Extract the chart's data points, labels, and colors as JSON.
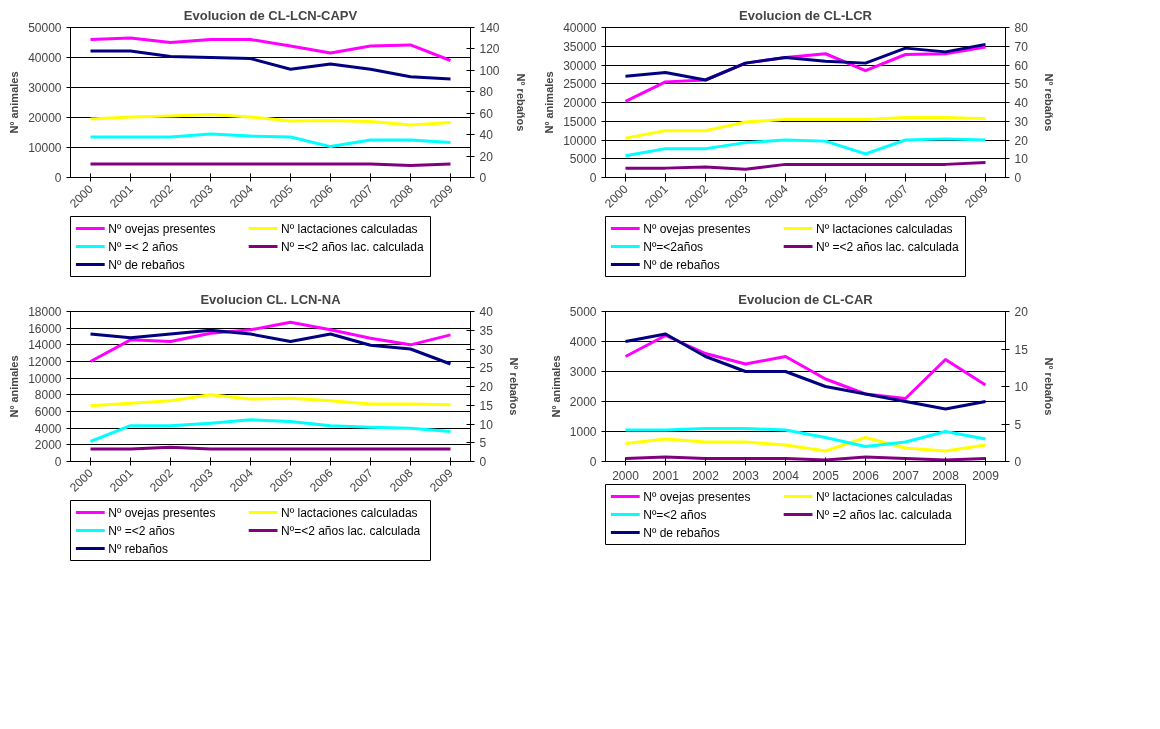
{
  "chart_data": [
    {
      "type": "line",
      "title": "Evolucion de CL-LCN-CAPV",
      "ylabel": "Nº animales",
      "y2label": "Nº rebaños",
      "categories": [
        "2000",
        "2001",
        "2002",
        "2003",
        "2004",
        "2005",
        "2006",
        "2007",
        "2008",
        "2009"
      ],
      "series": [
        {
          "name": "Nº ovejas presentes",
          "color": "#ff00ff",
          "values": [
            46000,
            46500,
            45000,
            46000,
            46000,
            43800,
            41500,
            43800,
            44200,
            39000
          ]
        },
        {
          "name": "Nº lactaciones calculadas",
          "color": "#ffff00",
          "values": [
            19500,
            20200,
            20500,
            21000,
            20200,
            18800,
            19000,
            18700,
            17500,
            18300
          ]
        },
        {
          "name": "Nº =< 2 años",
          "color": "#00ffff",
          "values": [
            13500,
            13500,
            13500,
            14500,
            13800,
            13500,
            10300,
            12500,
            12500,
            11700
          ]
        },
        {
          "name": "Nº =<2 años lac. calculada",
          "color": "#800080",
          "values": [
            4500,
            4500,
            4500,
            4500,
            4500,
            4500,
            4500,
            4500,
            4000,
            4500
          ]
        },
        {
          "name": "Nº de rebaños",
          "color": "#000080",
          "axis": "y2",
          "values": [
            118,
            118,
            113,
            112,
            111,
            101,
            106,
            101,
            94,
            92
          ]
        }
      ],
      "ylim": [
        0,
        50000
      ],
      "yticks": [
        0,
        10000,
        20000,
        30000,
        40000,
        50000
      ],
      "y2lim": [
        0,
        140
      ],
      "y2ticks": [
        0,
        20,
        40,
        60,
        80,
        100,
        120,
        140
      ],
      "grid": "y",
      "legend": "bottom"
    },
    {
      "type": "line",
      "title": "Evolucion de CL-LCR",
      "ylabel": "Nº animales",
      "y2label": "Nº rebaños",
      "categories": [
        "2000",
        "2001",
        "2002",
        "2003",
        "2004",
        "2005",
        "2006",
        "2007",
        "2008",
        "2009"
      ],
      "series": [
        {
          "name": "Nº ovejas presentes",
          "color": "#ff00ff",
          "values": [
            20300,
            25500,
            26000,
            30500,
            32000,
            33000,
            28500,
            32800,
            33000,
            34800
          ]
        },
        {
          "name": "Nº lactaciones calculadas",
          "color": "#ffff00",
          "values": [
            10500,
            12500,
            12500,
            14800,
            15500,
            15500,
            15500,
            16000,
            16000,
            15700
          ]
        },
        {
          "name": "Nº=<2años",
          "color": "#00ffff",
          "values": [
            5800,
            7700,
            7700,
            9300,
            10000,
            9700,
            6300,
            10000,
            10300,
            10000
          ]
        },
        {
          "name": "Nº =<2 años  lac. calculada",
          "color": "#800080",
          "values": [
            2500,
            2500,
            2800,
            2200,
            3500,
            3500,
            3500,
            3500,
            3500,
            4000
          ]
        },
        {
          "name": "Nº de rebaños",
          "color": "#000080",
          "axis": "y2",
          "values": [
            54,
            56,
            52,
            61,
            64,
            62,
            61,
            69,
            67,
            71
          ]
        }
      ],
      "ylim": [
        0,
        40000
      ],
      "yticks": [
        0,
        5000,
        10000,
        15000,
        20000,
        25000,
        30000,
        35000,
        40000
      ],
      "y2lim": [
        0,
        80
      ],
      "y2ticks": [
        0,
        10,
        20,
        30,
        40,
        50,
        60,
        70,
        80
      ],
      "grid": "y",
      "legend": "bottom"
    },
    {
      "type": "line",
      "title": "Evolucion CL. LCN-NA",
      "ylabel": "Nº animales",
      "y2label": "Nº rebaños",
      "categories": [
        "2000",
        "2001",
        "2002",
        "2003",
        "2004",
        "2005",
        "2006",
        "2007",
        "2008",
        "2009"
      ],
      "series": [
        {
          "name": "Nº ovejas presentes",
          "color": "#ff00ff",
          "values": [
            12000,
            14600,
            14400,
            15400,
            15800,
            16700,
            15800,
            14800,
            14000,
            15200
          ]
        },
        {
          "name": "Nº lactaciones calculadas",
          "color": "#ffff00",
          "values": [
            6700,
            7000,
            7300,
            8000,
            7500,
            7600,
            7300,
            6900,
            6900,
            6800
          ]
        },
        {
          "name": "Nº =<2 años",
          "color": "#00ffff",
          "values": [
            2400,
            4300,
            4300,
            4600,
            5000,
            4800,
            4300,
            4100,
            4000,
            3600
          ]
        },
        {
          "name": "Nº=<2 años  lac. calculada",
          "color": "#800080",
          "values": [
            1500,
            1500,
            1700,
            1500,
            1500,
            1500,
            1500,
            1500,
            1500,
            1500
          ]
        },
        {
          "name": "Nº rebaños",
          "color": "#000080",
          "axis": "y2",
          "values": [
            34,
            33,
            34,
            35,
            34,
            32,
            34,
            31,
            30,
            26
          ]
        }
      ],
      "ylim": [
        0,
        18000
      ],
      "yticks": [
        0,
        2000,
        4000,
        6000,
        8000,
        10000,
        12000,
        14000,
        16000,
        18000
      ],
      "y2lim": [
        0,
        40
      ],
      "y2ticks": [
        0,
        5,
        10,
        15,
        20,
        25,
        30,
        35,
        40
      ],
      "grid": "y",
      "legend": "bottom"
    },
    {
      "type": "line",
      "title": "Evolucion de CL-CAR",
      "ylabel": "Nº animales",
      "y2label": "Nº rebaños",
      "categories": [
        "2000",
        "2001",
        "2002",
        "2003",
        "2004",
        "2005",
        "2006",
        "2007",
        "2008",
        "2009"
      ],
      "series": [
        {
          "name": "Nº ovejas presentes",
          "color": "#ff00ff",
          "values": [
            3500,
            4200,
            3600,
            3250,
            3500,
            2750,
            2250,
            2100,
            3400,
            2550
          ]
        },
        {
          "name": "Nº lactaciones calculadas",
          "color": "#ffff00",
          "values": [
            600,
            750,
            650,
            650,
            550,
            350,
            800,
            450,
            350,
            550
          ]
        },
        {
          "name": "Nº=<2 años",
          "color": "#00ffff",
          "values": [
            1050,
            1050,
            1100,
            1100,
            1050,
            800,
            500,
            650,
            1000,
            750
          ]
        },
        {
          "name": "Nº =2 años lac. calculada",
          "color": "#800080",
          "values": [
            100,
            150,
            100,
            100,
            100,
            50,
            150,
            100,
            50,
            100
          ]
        },
        {
          "name": "Nº de rebaños",
          "color": "#000080",
          "axis": "y2",
          "values": [
            16,
            17,
            14,
            12,
            12,
            10,
            9,
            8,
            7,
            8
          ]
        }
      ],
      "ylim": [
        0,
        5000
      ],
      "yticks": [
        0,
        1000,
        2000,
        3000,
        4000,
        5000
      ],
      "y2lim": [
        0,
        20
      ],
      "y2ticks": [
        0,
        5,
        10,
        15,
        20
      ],
      "grid": "y",
      "legend": "bottom"
    }
  ]
}
